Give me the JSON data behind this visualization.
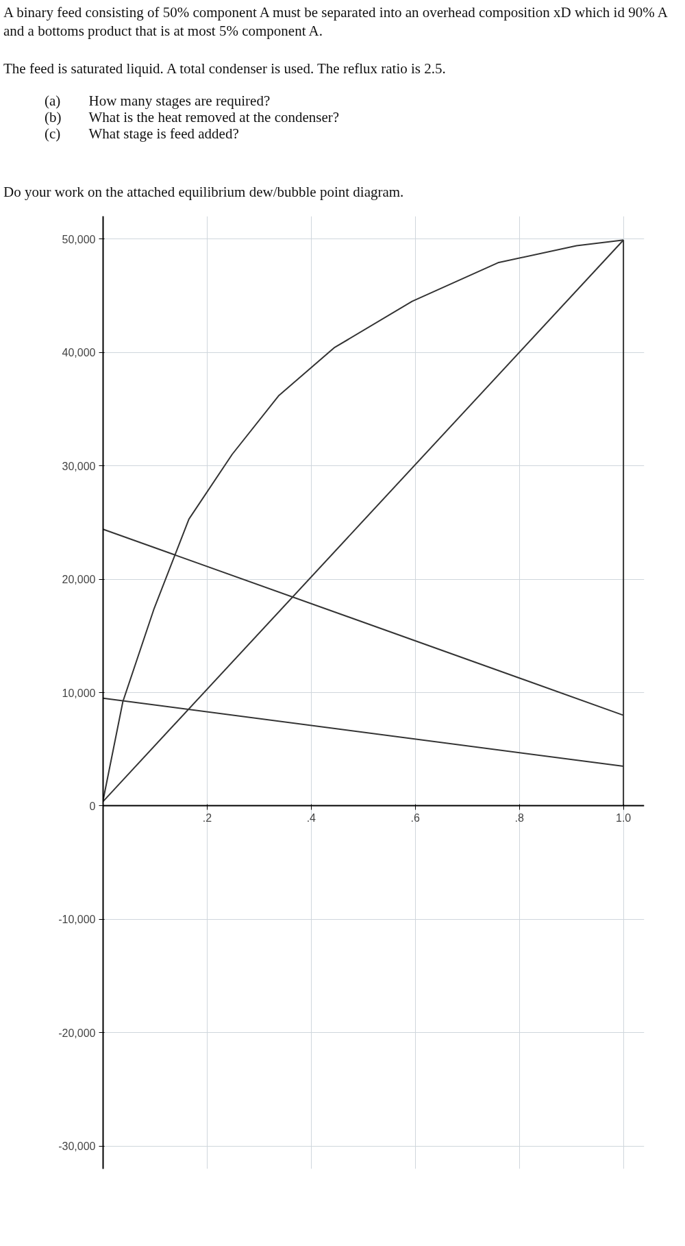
{
  "chart_data": {
    "type": "line",
    "title": "A binary feed consisting of 50% component A must be separated into an overhead composition xD which id 90% A and a bottoms product that is at most 5% component A.",
    "subtitle": "The feed is saturated liquid.  A total condenser is used.  The reflux ratio is 2.5.",
    "annotations": [
      "(a)\tHow many stages are required?",
      "(b)\tWhat is the heat removed at the condenser?",
      "(c)\tWhat stage is feed added?",
      "Do your work on the attached equilibrium dew/bubble point diagram."
    ],
    "xlim": [
      0,
      1.04
    ],
    "ylim": [
      -32000,
      52000
    ],
    "xticks": [
      {
        "value": 0.2,
        "label": ".2"
      },
      {
        "value": 0.4,
        "label": ".4"
      },
      {
        "value": 0.6,
        "label": ".6"
      },
      {
        "value": 0.8,
        "label": ".8"
      },
      {
        "value": 1.0,
        "label": "1.0"
      }
    ],
    "yticks": [
      {
        "value": -30000,
        "label": "-30,000"
      },
      {
        "value": -20000,
        "label": "-20,000"
      },
      {
        "value": -10000,
        "label": "-10,000"
      },
      0,
      {
        "value": 10000,
        "label": "10,000"
      },
      {
        "value": 20000,
        "label": "20,000"
      },
      {
        "value": 30000,
        "label": "30,000"
      },
      {
        "value": 40000,
        "label": "40,000"
      },
      {
        "value": 50000,
        "label": "50,000"
      }
    ],
    "grid": true,
    "marker": "none",
    "line_style": "solid",
    "series": [
      {
        "color": "#333333",
        "x": [
          0,
          0.038,
          0.098,
          0.165,
          0.248,
          0.338,
          0.444,
          0.594,
          0.759,
          0.91,
          1.0
        ],
        "values": [
          500,
          9200,
          17400,
          25300,
          31000,
          36200,
          40400,
          44500,
          47900,
          49400,
          49900
        ]
      },
      {
        "color": "#333333",
        "x": [
          0,
          1.0
        ],
        "values": [
          400,
          49900
        ]
      },
      {
        "color": "#333333",
        "x": [
          0,
          1.0
        ],
        "values": [
          24400,
          8000
        ]
      },
      {
        "color": "#333333",
        "x": [
          0,
          1.0
        ],
        "values": [
          9500,
          3500
        ]
      },
      {
        "color": "#333333",
        "x": [
          1.0,
          1.0
        ],
        "values": [
          0,
          49900
        ]
      }
    ]
  }
}
